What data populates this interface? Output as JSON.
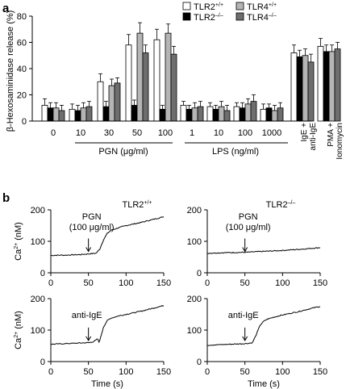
{
  "panel_a": {
    "letter": "a",
    "ylabel": "β-Hexosaminidase release (%)",
    "ylim": [
      0,
      80
    ],
    "yticks": [
      "0",
      "20",
      "40",
      "60",
      "80"
    ],
    "legend": [
      {
        "prefix": "TLR2",
        "sup": "+/+",
        "color": "#ffffff"
      },
      {
        "prefix": "TLR4",
        "sup": "+/+",
        "color": "#b5b5b5"
      },
      {
        "prefix": "TLR2",
        "sup": "–/–",
        "color": "#000000"
      },
      {
        "prefix": "TLR4",
        "sup": "–/–",
        "color": "#6e6e6e"
      }
    ],
    "group_labels": {
      "pgn": "PGN (μg/ml)",
      "lps": "LPS (ng/ml)",
      "ige": [
        "IgE +",
        "anti-IgE"
      ],
      "pma": [
        "PMA +",
        "Ionomycin"
      ]
    }
  },
  "panel_b": {
    "letter": "b",
    "ylabel": "Ca",
    "ylabel_sup": "2+",
    "ylabel_unit": "(nM)",
    "xlabel": "Time (s)",
    "xticks": [
      "0",
      "50",
      "100",
      "150"
    ],
    "yticks": [
      "0",
      "100",
      "200"
    ],
    "titles": [
      {
        "prefix": "TLR2",
        "sup": "+/+"
      },
      {
        "prefix": "TLR2",
        "sup": "–/–"
      }
    ],
    "annot_pgn": [
      "PGN",
      "(100 μg/ml)"
    ],
    "annot_ige": "anti-IgE"
  },
  "chart_data": [
    {
      "type": "bar",
      "title": "",
      "xlabel": "",
      "ylabel": "β-Hexosaminidase release (%)",
      "ylim": [
        0,
        80
      ],
      "categories": [
        "0",
        "10",
        "30",
        "50",
        "100",
        "1",
        "10",
        "100",
        "1000",
        "IgE + anti-IgE",
        "PMA + Ionomycin"
      ],
      "series": [
        {
          "name": "TLR2+/+",
          "color": "#ffffff",
          "values": [
            12,
            9,
            30,
            58,
            62,
            12,
            11,
            11,
            9,
            52,
            57
          ],
          "errors": [
            5,
            4,
            6,
            8,
            8,
            3,
            3,
            3,
            4,
            6,
            6
          ]
        },
        {
          "name": "TLR2–/–",
          "color": "#000000",
          "values": [
            10,
            8,
            11,
            12,
            9,
            9,
            9,
            10,
            10,
            49,
            53
          ],
          "errors": [
            4,
            4,
            4,
            4,
            3,
            3,
            3,
            4,
            3,
            5,
            5
          ]
        },
        {
          "name": "TLR4+/+",
          "color": "#b5b5b5",
          "values": [
            10,
            10,
            27,
            67,
            67,
            10,
            11,
            13,
            8,
            50,
            53
          ],
          "errors": [
            4,
            4,
            5,
            8,
            7,
            4,
            4,
            4,
            4,
            5,
            5
          ]
        },
        {
          "name": "TLR4–/–",
          "color": "#6e6e6e",
          "values": [
            8,
            11,
            29,
            52,
            51,
            11,
            8,
            15,
            10,
            45,
            55
          ],
          "errors": [
            4,
            4,
            4,
            6,
            6,
            4,
            4,
            5,
            4,
            6,
            5
          ]
        }
      ]
    },
    {
      "type": "line",
      "title": "TLR2+/+",
      "annotation": "PGN (100 μg/ml)",
      "xlabel": "Time (s)",
      "ylabel": "Ca2+ (nM)",
      "xlim": [
        0,
        150
      ],
      "ylim": [
        0,
        200
      ],
      "x": [
        0,
        10,
        20,
        30,
        40,
        50,
        55,
        60,
        65,
        70,
        75,
        80,
        90,
        100,
        110,
        120,
        130,
        140,
        150
      ],
      "y": [
        55,
        56,
        56,
        57,
        58,
        60,
        61,
        62,
        75,
        105,
        125,
        135,
        143,
        150,
        155,
        160,
        166,
        172,
        178
      ]
    },
    {
      "type": "line",
      "title": "TLR2–/–",
      "annotation": "PGN (100 μg/ml)",
      "xlabel": "Time (s)",
      "ylabel": "Ca2+ (nM)",
      "xlim": [
        0,
        150
      ],
      "ylim": [
        0,
        200
      ],
      "x": [
        0,
        25,
        50,
        75,
        100,
        125,
        150
      ],
      "y": [
        62,
        64,
        65,
        68,
        71,
        75,
        80
      ]
    },
    {
      "type": "line",
      "title": "TLR2+/+",
      "annotation": "anti-IgE",
      "xlabel": "Time (s)",
      "ylabel": "Ca2+ (nM)",
      "xlim": [
        0,
        150
      ],
      "ylim": [
        0,
        200
      ],
      "x": [
        0,
        10,
        20,
        30,
        40,
        50,
        55,
        60,
        62,
        64,
        66,
        70,
        75,
        80,
        90,
        100,
        110,
        120,
        130,
        140,
        150
      ],
      "y": [
        55,
        56,
        57,
        58,
        59,
        60,
        62,
        68,
        72,
        62,
        75,
        110,
        130,
        138,
        145,
        150,
        155,
        160,
        166,
        172,
        178
      ]
    },
    {
      "type": "line",
      "title": "TLR2–/–",
      "annotation": "anti-IgE",
      "xlabel": "Time (s)",
      "ylabel": "Ca2+ (nM)",
      "xlim": [
        0,
        150
      ],
      "ylim": [
        0,
        200
      ],
      "x": [
        0,
        10,
        20,
        30,
        40,
        50,
        55,
        60,
        65,
        70,
        75,
        80,
        90,
        100,
        110,
        120,
        130,
        140,
        150
      ],
      "y": [
        52,
        53,
        54,
        55,
        56,
        57,
        58,
        60,
        85,
        115,
        128,
        135,
        142,
        148,
        153,
        158,
        164,
        170,
        175
      ]
    }
  ]
}
